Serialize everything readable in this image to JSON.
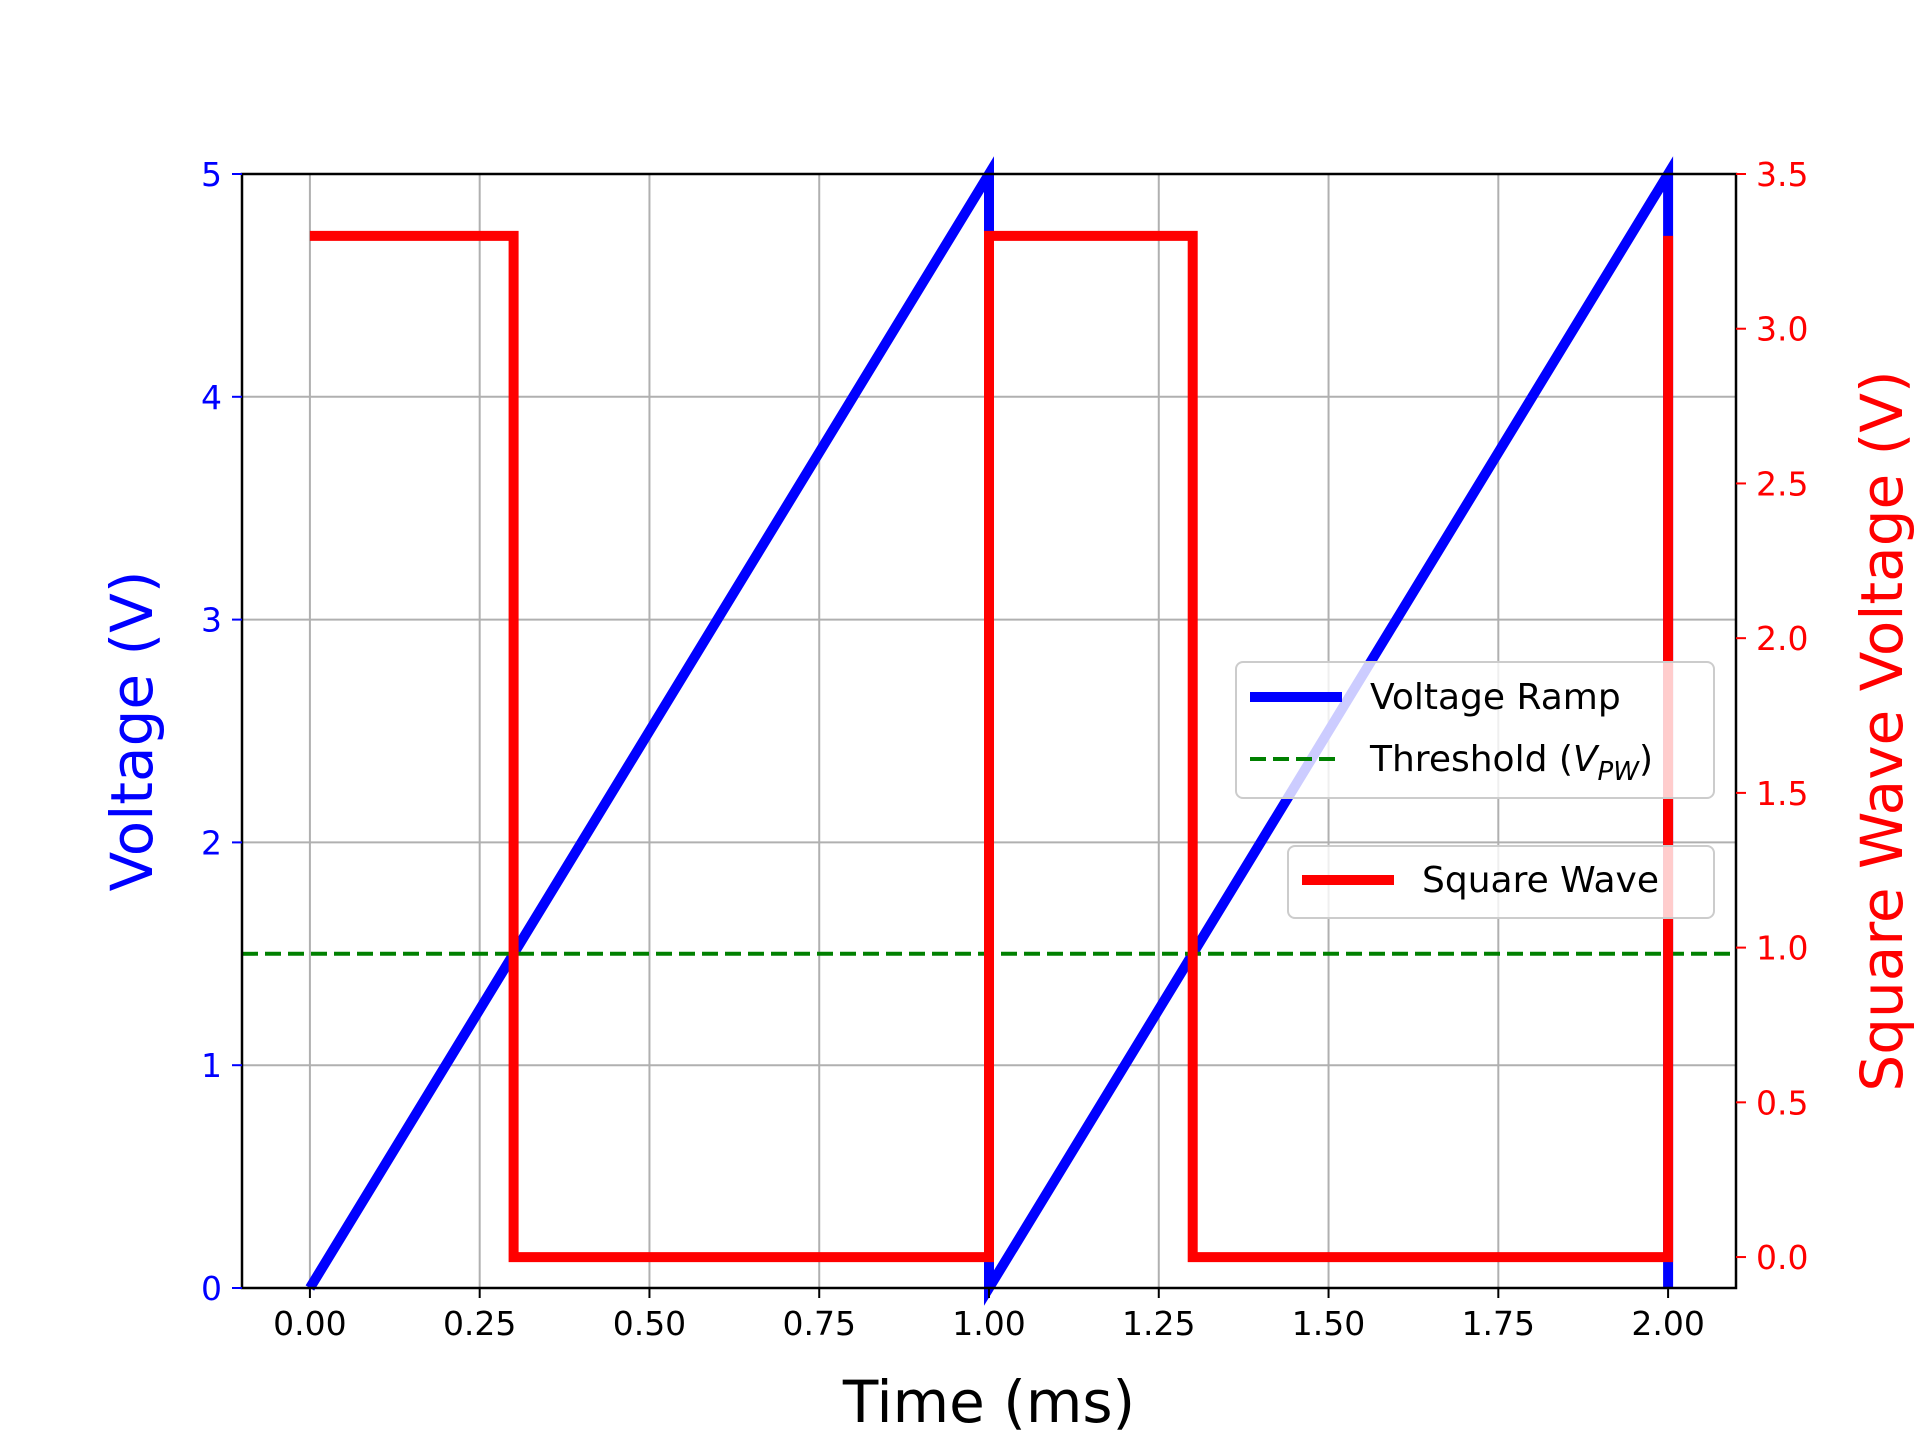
{
  "chart_data": {
    "type": "line",
    "title": "",
    "xlabel": "Time (ms)",
    "ylabel_left": "Voltage (V)",
    "ylabel_right": "Square Wave Voltage (V)",
    "xlim": [
      -0.1,
      2.1
    ],
    "ylim_left": [
      0,
      5
    ],
    "ylim_right": [
      -0.1,
      3.5
    ],
    "grid": true,
    "x_ticks": [
      "0.00",
      "0.25",
      "0.50",
      "0.75",
      "1.00",
      "1.25",
      "1.50",
      "1.75",
      "2.00"
    ],
    "y_left_ticks": [
      "0",
      "1",
      "2",
      "3",
      "4",
      "5"
    ],
    "y_right_ticks": [
      "0.0",
      "0.5",
      "1.0",
      "1.5",
      "2.0",
      "2.5",
      "3.0",
      "3.5"
    ],
    "colors": {
      "left_axis": "#0000ff",
      "right_axis": "#ff0000",
      "threshold": "#008000"
    },
    "series": [
      {
        "name": "Voltage Ramp",
        "axis": "left",
        "color": "#0000ff",
        "style": "solid",
        "x": [
          0,
          1.0,
          1.0,
          2.0,
          2.0
        ],
        "y": [
          0,
          5,
          0,
          5,
          0
        ]
      },
      {
        "name": "Threshold (V_PW)",
        "axis": "left",
        "color": "#008000",
        "style": "dashed",
        "x": [
          -0.1,
          2.1
        ],
        "y": [
          1.5,
          1.5
        ]
      },
      {
        "name": "Square Wave",
        "axis": "right",
        "color": "#ff0000",
        "style": "solid",
        "x": [
          0,
          0.3,
          0.3,
          1.0,
          1.0,
          1.3,
          1.3,
          2.0,
          2.0
        ],
        "y": [
          3.3,
          3.3,
          0,
          0,
          3.3,
          3.3,
          0,
          0,
          3.3
        ]
      }
    ],
    "legends": [
      {
        "placement": "center-right",
        "entries": [
          "Voltage Ramp",
          "Threshold (V_PW)"
        ]
      },
      {
        "placement": "lower-right",
        "entries": [
          "Square Wave"
        ]
      }
    ],
    "legend_labels": {
      "ramp": "Voltage Ramp",
      "threshold_prefix": "Threshold (",
      "threshold_var": "V",
      "threshold_sub": "PW",
      "threshold_suffix": ")",
      "square": "Square Wave"
    }
  }
}
